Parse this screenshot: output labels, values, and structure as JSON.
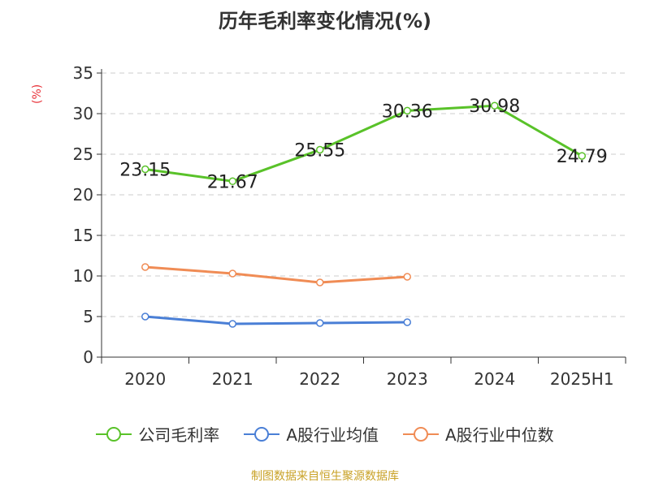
{
  "chart_data": {
    "type": "line",
    "title": "历年毛利率变化情况(%)",
    "ylabel": "(%)",
    "categories": [
      "2020",
      "2021",
      "2022",
      "2023",
      "2024",
      "2025H1"
    ],
    "ylim": [
      0,
      35
    ],
    "yticks": [
      0,
      5,
      10,
      15,
      20,
      25,
      30,
      35
    ],
    "grid": true,
    "legend_position": "bottom",
    "series": [
      {
        "name": "公司毛利率",
        "color": "#59c229",
        "values": [
          23.15,
          21.67,
          25.55,
          30.36,
          30.98,
          24.79
        ],
        "labels": [
          "23.15",
          "21.67",
          "25.55",
          "30.36",
          "30.98",
          "24.79"
        ]
      },
      {
        "name": "A股行业均值",
        "color": "#4a7fd6",
        "values": [
          5.0,
          4.1,
          4.2,
          4.3,
          null,
          null
        ]
      },
      {
        "name": "A股行业中位数",
        "color": "#f08c55",
        "values": [
          11.1,
          10.3,
          9.2,
          9.9,
          null,
          null
        ]
      }
    ]
  },
  "source": "制图数据来自恒生聚源数据库"
}
